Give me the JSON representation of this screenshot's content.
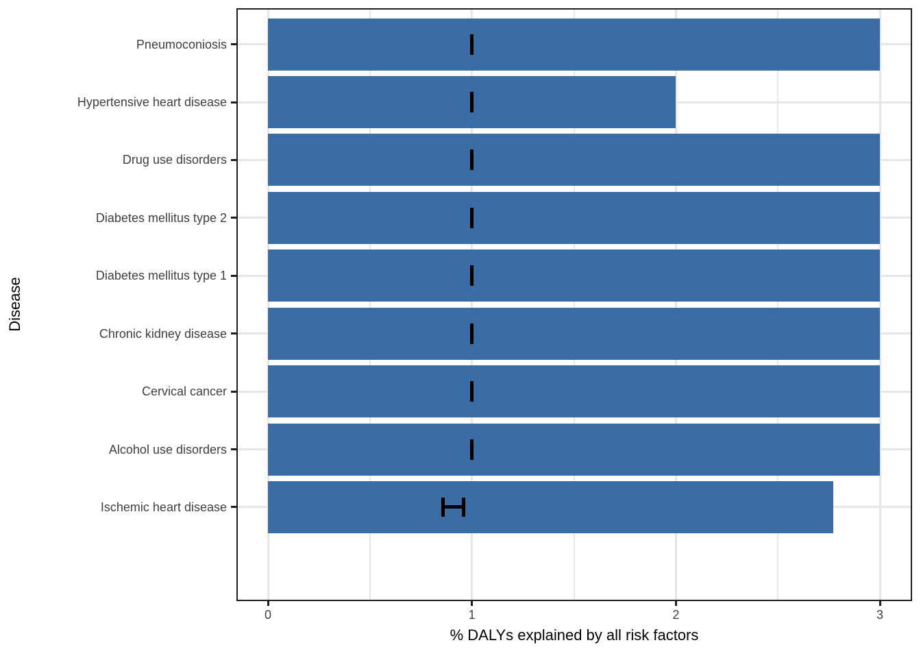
{
  "chart_data": {
    "type": "bar",
    "orientation": "horizontal",
    "title": "",
    "xlabel": "% DALYs explained by all risk factors",
    "ylabel": "Disease",
    "categories": [
      "Pneumoconiosis",
      "Hypertensive heart disease",
      "Drug use disorders",
      "Diabetes mellitus type 2",
      "Diabetes mellitus type 1",
      "Chronic kidney disease",
      "Cervical cancer",
      "Alcohol use disorders",
      "Ischemic heart disease"
    ],
    "values": [
      3.0,
      2.0,
      3.0,
      3.0,
      3.0,
      3.0,
      3.0,
      3.0,
      2.77
    ],
    "error_bars": [
      {
        "xmin": 1.0,
        "xmax": 1.0
      },
      {
        "xmin": 1.0,
        "xmax": 1.0
      },
      {
        "xmin": 1.0,
        "xmax": 1.0
      },
      {
        "xmin": 1.0,
        "xmax": 1.0
      },
      {
        "xmin": 1.0,
        "xmax": 1.0
      },
      {
        "xmin": 1.0,
        "xmax": 1.0
      },
      {
        "xmin": 1.0,
        "xmax": 1.0
      },
      {
        "xmin": 1.0,
        "xmax": 1.0
      },
      {
        "xmin": 0.86,
        "xmax": 0.96
      }
    ],
    "x_tick_labels": [
      "0",
      "1",
      "2",
      "3"
    ],
    "x_tick_values": [
      0,
      1,
      2,
      3
    ],
    "x_minor_tick_values": [
      0.5,
      1.5,
      2.5
    ],
    "xlim": [
      0,
      3
    ],
    "grid": "major-and-minor-vertical, major-horizontal",
    "legend": "none",
    "bar_color": "#3a6da5",
    "grid_color": "#e6e6e6",
    "panel_border_color": "#1f1f1f",
    "error_bar_color": "#000000",
    "axis_text_color": "#404040",
    "axis_title_color": "#000000"
  }
}
